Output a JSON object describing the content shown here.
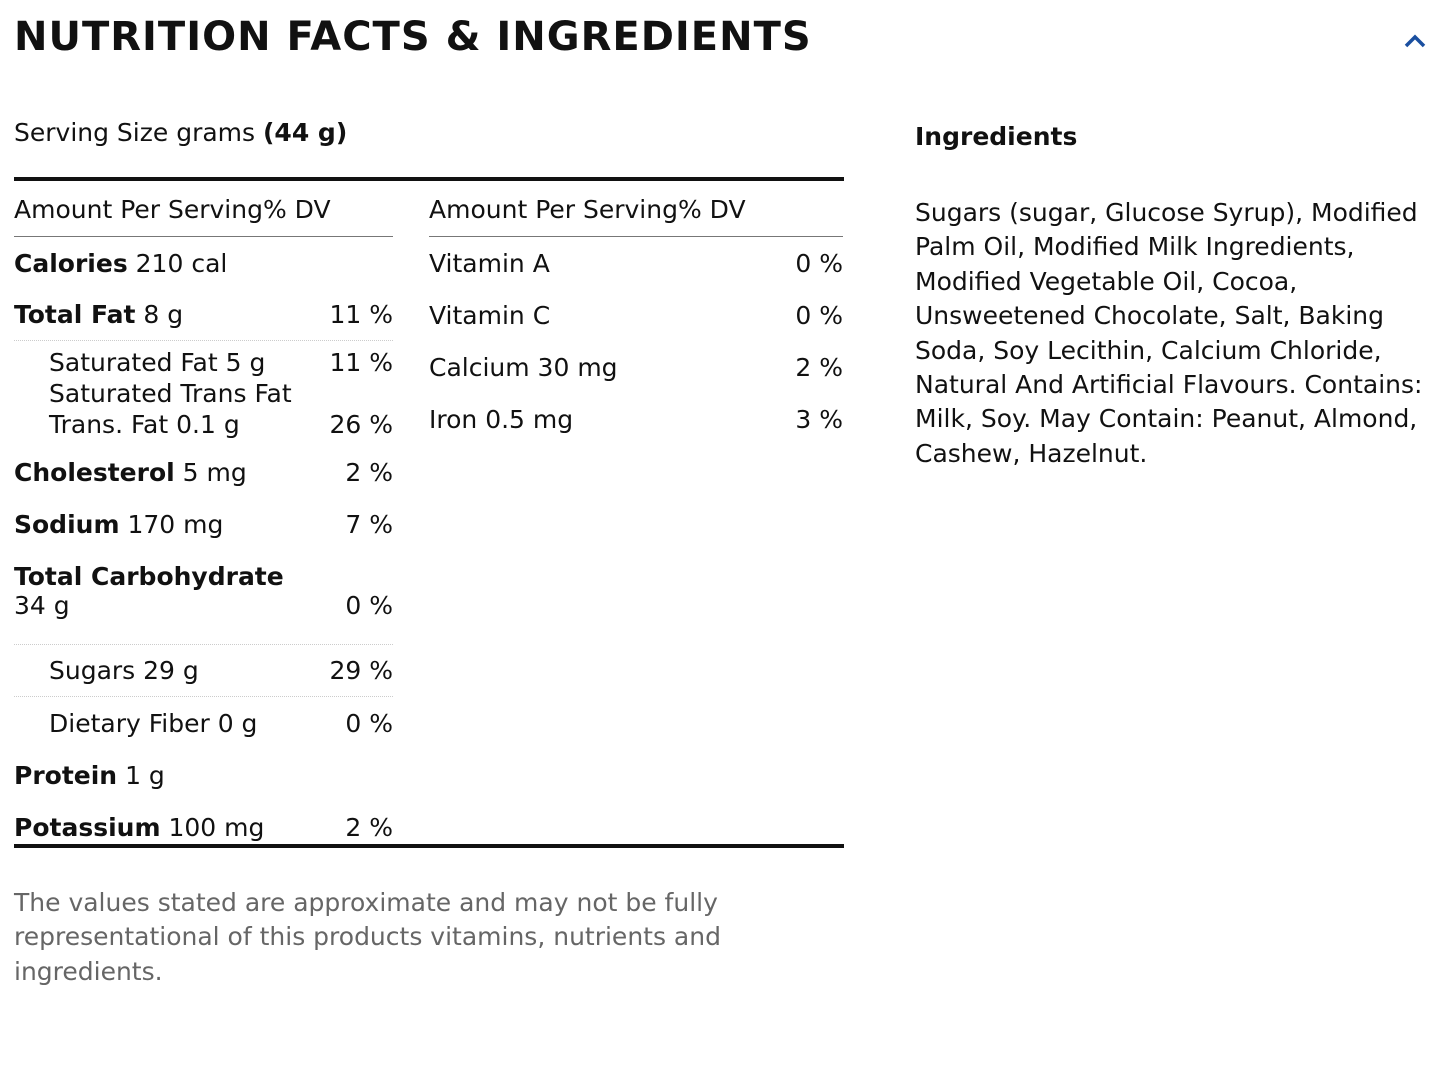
{
  "title": "NUTRITION FACTS & INGREDIENTS",
  "serving": {
    "label": "Serving Size grams",
    "value": "(44 g)"
  },
  "header": "Amount Per Serving% DV",
  "left": {
    "calories": {
      "name": "Calories",
      "amount": "210 cal"
    },
    "total_fat": {
      "name": "Total Fat",
      "amount": "8 g",
      "dv": "11 %"
    },
    "saturated": {
      "line1": "Saturated Fat 5 g",
      "line2": "Saturated Trans Fat",
      "line3": "Trans. Fat 0.1 g",
      "dv1": "11 %",
      "dv2": "26 %"
    },
    "cholesterol": {
      "name": "Cholesterol",
      "amount": "5 mg",
      "dv": "2 %"
    },
    "sodium": {
      "name": "Sodium",
      "amount": "170 mg",
      "dv": "7 %"
    },
    "carb": {
      "name": "Total Carbohydrate",
      "amount": "34 g",
      "dv": "0 %"
    },
    "sugars": {
      "label": "Sugars 29 g",
      "dv": "29 %"
    },
    "fiber": {
      "label": "Dietary Fiber 0 g",
      "dv": "0 %"
    },
    "protein": {
      "name": "Protein",
      "amount": "1 g"
    },
    "potassium": {
      "name": "Potassium",
      "amount": "100 mg",
      "dv": "2 %"
    }
  },
  "right": [
    {
      "label": "Vitamin A",
      "dv": "0 %"
    },
    {
      "label": "Vitamin C",
      "dv": "0 %"
    },
    {
      "label": "Calcium 30 mg",
      "dv": "2 %"
    },
    {
      "label": "Iron 0.5 mg",
      "dv": "3 %"
    }
  ],
  "ingredients": {
    "title": "Ingredients",
    "text": "Sugars (sugar, Glucose Syrup), Modified Palm Oil, Modified Milk Ingredients, Modified Vegetable Oil, Cocoa, Unsweetened Chocolate, Salt, Baking Soda, Soy Lecithin, Calcium Chloride, Natural And Artificial Flavours. Contains: Milk, Soy. May Contain: Peanut, Almond, Cashew, Hazelnut."
  },
  "note": "The values stated are approximate and may not be fully representational of this products vitamins, nutrients and ingredients.",
  "colors": {
    "accent": "#1a4fa0"
  }
}
